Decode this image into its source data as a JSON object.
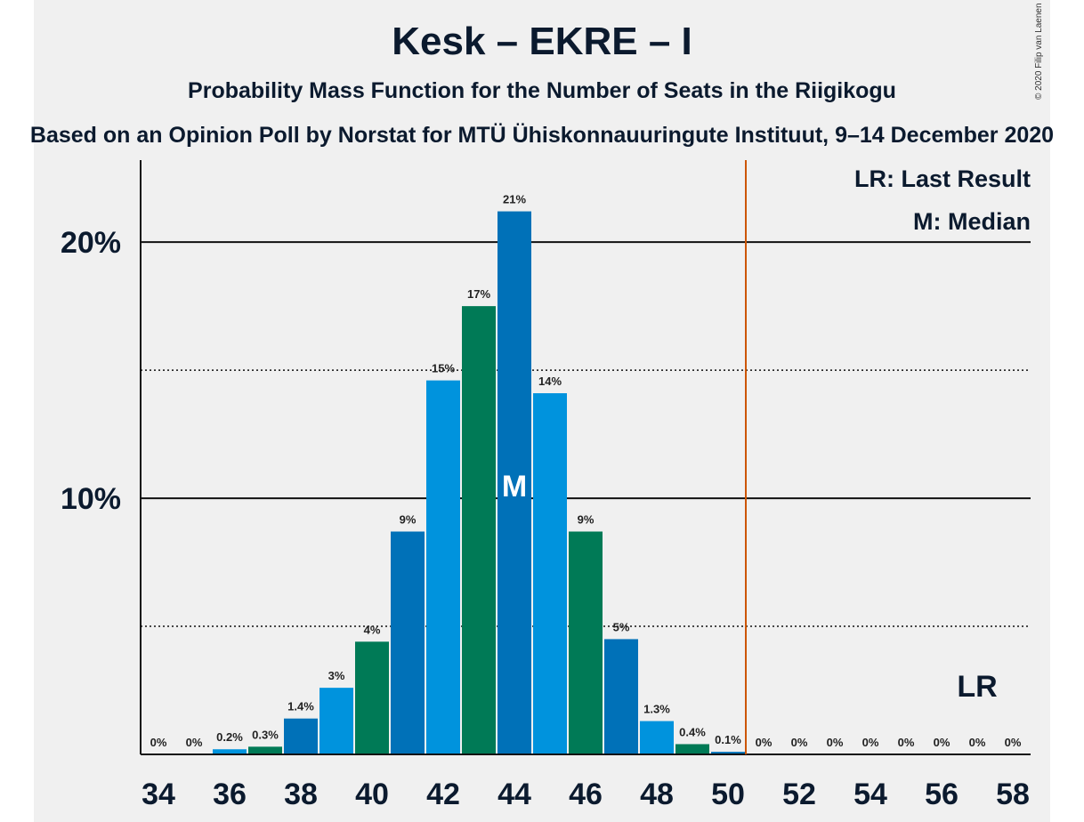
{
  "chart_data": {
    "type": "bar",
    "title": "Kesk – EKRE – I",
    "subtitle": "Probability Mass Function for the Number of Seats in the Riigikogu",
    "source": "Based on an Opinion Poll by Norstat for MTÜ Ühiskonnauuringute Instituut, 9–14 December 2020",
    "copyright": "© 2020 Filip van Laenen",
    "categories": [
      34,
      35,
      36,
      37,
      38,
      39,
      40,
      41,
      42,
      43,
      44,
      45,
      46,
      47,
      48,
      49,
      50,
      51,
      52,
      53,
      54,
      55,
      56,
      57,
      58
    ],
    "values": [
      0,
      0,
      0.2,
      0.3,
      1.4,
      2.6,
      4.4,
      8.7,
      14.6,
      17.5,
      21.2,
      14.1,
      8.7,
      4.5,
      1.3,
      0.4,
      0.1,
      0,
      0,
      0,
      0,
      0,
      0,
      0,
      0
    ],
    "data_labels": [
      "0%",
      "0%",
      "0.2%",
      "0.3%",
      "1.4%",
      "3%",
      "4%",
      "9%",
      "15%",
      "17%",
      "21%",
      "14%",
      "9%",
      "5%",
      "1.3%",
      "0.4%",
      "0.1%",
      "0%",
      "0%",
      "0%",
      "0%",
      "0%",
      "0%",
      "0%",
      "0%"
    ],
    "x_tick_labels": [
      "34",
      "36",
      "38",
      "40",
      "42",
      "44",
      "46",
      "48",
      "50",
      "52",
      "54",
      "56",
      "58"
    ],
    "y_ticks": [
      {
        "value": 10,
        "label": "10%"
      },
      {
        "value": 20,
        "label": "20%"
      }
    ],
    "y_minor_ticks": [
      5,
      15
    ],
    "ylim": [
      0,
      23.2
    ],
    "xlim": [
      33.5,
      58.5
    ],
    "majority_line": 50.5,
    "median": 44,
    "median_label": "M",
    "last_result": 57,
    "last_result_label": "LR",
    "legend": [
      "LR: Last Result",
      "M: Median"
    ],
    "colors": {
      "green": "#007a56",
      "dark_blue": "#0071b8",
      "light_blue": "#0093dd",
      "majority": "#cc5500",
      "text": "#0b1a2e"
    }
  }
}
